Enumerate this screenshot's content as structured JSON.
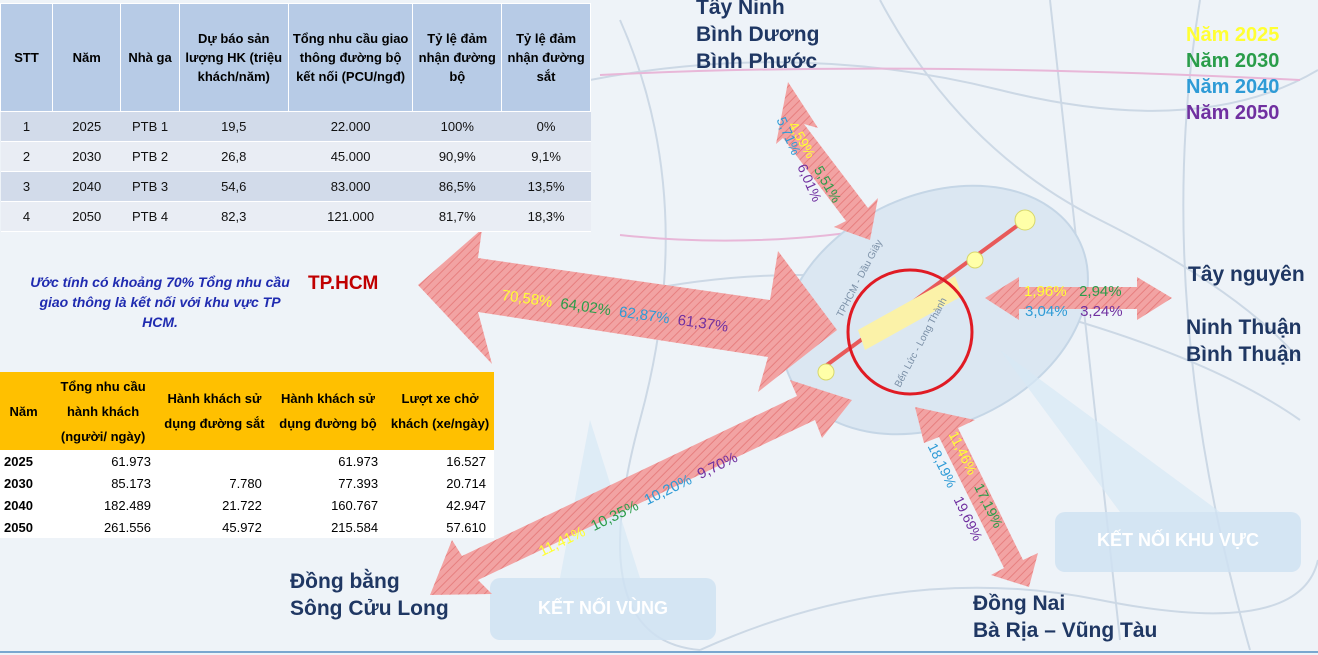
{
  "table_forecast": {
    "headers": [
      "STT",
      "Năm",
      "Nhà ga",
      "Dự báo sản lượng HK (triệu khách/năm)",
      "Tổng nhu cầu giao thông đường bộ kết nối (PCU/ngđ)",
      "Tỷ lệ đảm nhận đường bộ",
      "Tỷ lệ đảm nhận đường sắt"
    ],
    "rows": [
      [
        "1",
        "2025",
        "PTB 1",
        "19,5",
        "22.000",
        "100%",
        "0%"
      ],
      [
        "2",
        "2030",
        "PTB 2",
        "26,8",
        "45.000",
        "90,9%",
        "9,1%"
      ],
      [
        "3",
        "2040",
        "PTB 3",
        "54,6",
        "83.000",
        "86,5%",
        "13,5%"
      ],
      [
        "4",
        "2050",
        "PTB 4",
        "82,3",
        "121.000",
        "81,7%",
        "18,3%"
      ]
    ]
  },
  "note": "Ước tính có khoảng 70% Tổng nhu cầu giao thông là kết nối với khu vực TP HCM.",
  "table_passengers": {
    "headers": [
      "Năm",
      "Tổng nhu cầu hành khách (người/ ngày)",
      "Hành khách sử dụng đường sắt",
      "Hành khách sử dụng đường bộ",
      "Lượt xe chở khách (xe/ngày)"
    ],
    "rows": [
      [
        "2025",
        "61.973",
        "",
        "61.973",
        "16.527"
      ],
      [
        "2030",
        "85.173",
        "7.780",
        "77.393",
        "20.714"
      ],
      [
        "2040",
        "182.489",
        "21.722",
        "160.767",
        "42.947"
      ],
      [
        "2050",
        "261.556",
        "45.972",
        "215.584",
        "57.610"
      ]
    ]
  },
  "legend": [
    "Năm 2025",
    "Năm 2030",
    "Năm 2040",
    "Năm 2050"
  ],
  "legend_colors": [
    "#ffff33",
    "#2a9d4a",
    "#2e9bd6",
    "#7030a0"
  ],
  "regions": {
    "north": [
      "Tây Ninh",
      "Bình Dương",
      "Bình Phước"
    ],
    "hcm": "TP.HCM",
    "east_1": "Tây nguyên",
    "east_2": [
      "Ninh Thuận",
      "Bình Thuận"
    ],
    "south": [
      "Đồng Nai",
      "Bà Rịa – Vũng Tàu"
    ],
    "southwest": [
      "Đồng bằng",
      "Sông Cửu Long"
    ]
  },
  "shares": {
    "north": [
      "4,59%",
      "5,51%",
      "5,71%",
      "6,01%"
    ],
    "hcm": [
      "70,58%",
      "64,02%",
      "62,87%",
      "61,37%"
    ],
    "east": [
      "1,96%",
      "2,94%",
      "3,04%",
      "3,24%"
    ],
    "south": [
      "11,46%",
      "17,19%",
      "18,19%",
      "19,69%"
    ],
    "southwest": [
      "11,41%",
      "10,35%",
      "10,20%",
      "9,70%"
    ]
  },
  "map_labels": {
    "connect_region": "KẾT NỐI KHU VỰC",
    "connect_zone": "KẾT NỐI VÙNG",
    "road_1": "TPHCM - Dầu Giây",
    "road_2": "Bến Lức - Long Thành"
  }
}
